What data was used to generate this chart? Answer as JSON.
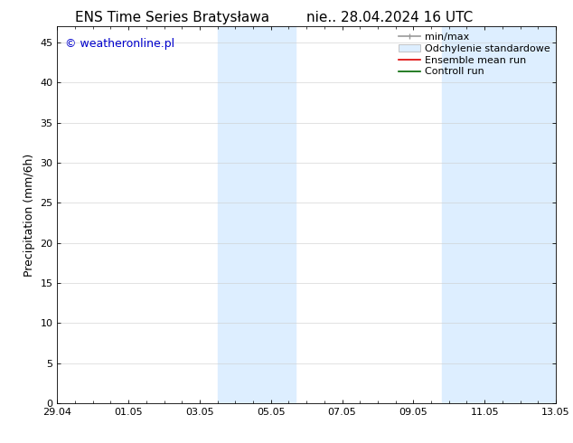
{
  "title": "ENS Time Series Bratysława",
  "title2": "nie.. 28.04.2024 16 UTC",
  "ylabel": "Precipitation (mm/6h)",
  "watermark": "© weatheronline.pl",
  "watermark_color": "#0000cc",
  "background_color": "#ffffff",
  "plot_bg_color": "#ffffff",
  "shade_color": "#ddeeff",
  "xlim_start": 0,
  "xlim_end": 14,
  "ylim": [
    0,
    47
  ],
  "yticks": [
    0,
    5,
    10,
    15,
    20,
    25,
    30,
    35,
    40,
    45
  ],
  "xtick_labels": [
    "29.04",
    "01.05",
    "03.05",
    "05.05",
    "07.05",
    "09.05",
    "11.05",
    "13.05"
  ],
  "xtick_positions": [
    0,
    2,
    4,
    6,
    8,
    10,
    12,
    14
  ],
  "shaded_bands": [
    {
      "x_start": 4.5,
      "x_end": 6.7
    },
    {
      "x_start": 10.8,
      "x_end": 14.0
    }
  ],
  "legend_labels": [
    "min/max",
    "Odchylenie standardowe",
    "Ensemble mean run",
    "Controll run"
  ],
  "font_size_title": 11,
  "font_size_axis": 9,
  "font_size_legend": 8,
  "font_size_watermark": 9,
  "tick_font_size": 8
}
